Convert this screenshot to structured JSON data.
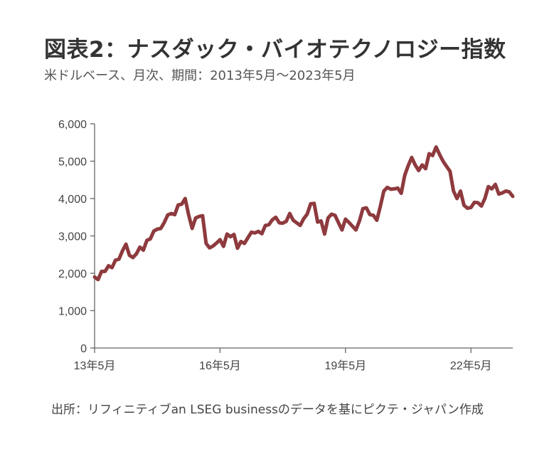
{
  "title": "図表2：ナスダック・バイオテクノロジー指数",
  "subtitle": "米ドルベース、月次、期間：2013年5月～2023年5月",
  "source": "出所：リフィニティブan LSEG businessのデータを基にピクテ・ジャパン作成",
  "colors": {
    "line": "#8e3a3e",
    "axis": "#666666",
    "grid": "#888888"
  },
  "chart_data": {
    "type": "line",
    "title": "図表2：ナスダック・バイオテクノロジー指数",
    "xlabel": "",
    "ylabel": "",
    "ylim": [
      0,
      6000
    ],
    "y_ticks": [
      0,
      1000,
      2000,
      3000,
      4000,
      5000,
      6000
    ],
    "y_tick_labels": [
      "0",
      "1,000",
      "2,000",
      "3,000",
      "4,000",
      "5,000",
      "6,000"
    ],
    "x_ticks": [
      "2013-05",
      "2016-05",
      "2019-05",
      "2022-05"
    ],
    "x_tick_labels": [
      "13年5月",
      "16年5月",
      "19年5月",
      "22年5月"
    ],
    "grid": false,
    "series": [
      {
        "name": "",
        "x": [
          "2013-05",
          "2013-06",
          "2013-07",
          "2013-08",
          "2013-09",
          "2013-10",
          "2013-11",
          "2013-12",
          "2014-01",
          "2014-02",
          "2014-03",
          "2014-04",
          "2014-05",
          "2014-06",
          "2014-07",
          "2014-08",
          "2014-09",
          "2014-10",
          "2014-11",
          "2014-12",
          "2015-01",
          "2015-02",
          "2015-03",
          "2015-04",
          "2015-05",
          "2015-06",
          "2015-07",
          "2015-08",
          "2015-09",
          "2015-10",
          "2015-11",
          "2015-12",
          "2016-01",
          "2016-02",
          "2016-03",
          "2016-04",
          "2016-05",
          "2016-06",
          "2016-07",
          "2016-08",
          "2016-09",
          "2016-10",
          "2016-11",
          "2016-12",
          "2017-01",
          "2017-02",
          "2017-03",
          "2017-04",
          "2017-05",
          "2017-06",
          "2017-07",
          "2017-08",
          "2017-09",
          "2017-10",
          "2017-11",
          "2017-12",
          "2018-01",
          "2018-02",
          "2018-03",
          "2018-04",
          "2018-05",
          "2018-06",
          "2018-07",
          "2018-08",
          "2018-09",
          "2018-10",
          "2018-11",
          "2018-12",
          "2019-01",
          "2019-02",
          "2019-03",
          "2019-04",
          "2019-05",
          "2019-06",
          "2019-07",
          "2019-08",
          "2019-09",
          "2019-10",
          "2019-11",
          "2019-12",
          "2020-01",
          "2020-02",
          "2020-03",
          "2020-04",
          "2020-05",
          "2020-06",
          "2020-07",
          "2020-08",
          "2020-09",
          "2020-10",
          "2020-11",
          "2020-12",
          "2021-01",
          "2021-02",
          "2021-03",
          "2021-04",
          "2021-05",
          "2021-06",
          "2021-07",
          "2021-08",
          "2021-09",
          "2021-10",
          "2021-11",
          "2021-12",
          "2022-01",
          "2022-02",
          "2022-03",
          "2022-04",
          "2022-05",
          "2022-06",
          "2022-07",
          "2022-08",
          "2022-09",
          "2022-10",
          "2022-11",
          "2022-12",
          "2023-01",
          "2023-02",
          "2023-03",
          "2023-04",
          "2023-05"
        ],
        "values": [
          1900,
          1830,
          2050,
          2050,
          2200,
          2150,
          2350,
          2380,
          2600,
          2780,
          2480,
          2420,
          2520,
          2700,
          2620,
          2880,
          2920,
          3130,
          3180,
          3200,
          3360,
          3560,
          3600,
          3570,
          3830,
          3850,
          4000,
          3560,
          3200,
          3480,
          3520,
          3540,
          2800,
          2680,
          2730,
          2810,
          2900,
          2720,
          3050,
          2980,
          3040,
          2670,
          2850,
          2800,
          2950,
          3100,
          3080,
          3120,
          3060,
          3280,
          3300,
          3430,
          3500,
          3350,
          3340,
          3390,
          3600,
          3420,
          3350,
          3280,
          3460,
          3580,
          3860,
          3870,
          3370,
          3400,
          3050,
          3480,
          3580,
          3550,
          3350,
          3160,
          3450,
          3360,
          3260,
          3160,
          3400,
          3730,
          3750,
          3570,
          3550,
          3420,
          3790,
          4200,
          4300,
          4250,
          4260,
          4280,
          4140,
          4620,
          4880,
          5100,
          4900,
          4750,
          4900,
          4800,
          5200,
          5150,
          5380,
          5180,
          5000,
          4860,
          4730,
          4200,
          4000,
          4200,
          3820,
          3740,
          3760,
          3900,
          3890,
          3800,
          4000,
          4320,
          4260,
          4380,
          4120,
          4150,
          4200,
          4180,
          4060
        ]
      }
    ]
  }
}
